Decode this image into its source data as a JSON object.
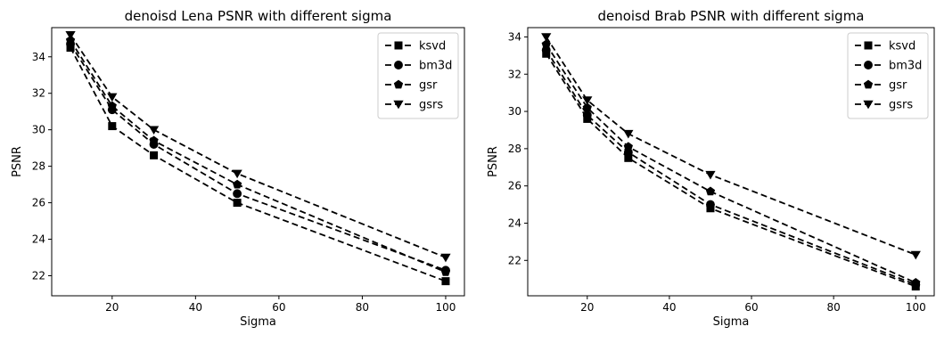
{
  "chart_data": [
    {
      "type": "line",
      "title": "denoisd Lena PSNR with different sigma",
      "xlabel": "Sigma",
      "ylabel": "PSNR",
      "x": [
        10,
        20,
        30,
        50,
        100
      ],
      "xlim": [
        5.5,
        104.5
      ],
      "ylim": [
        20.9,
        35.6
      ],
      "xticks": [
        20,
        40,
        60,
        80,
        100
      ],
      "yticks": [
        22,
        24,
        26,
        28,
        30,
        32,
        34
      ],
      "legend_position": "top-right",
      "line_style": "dashed",
      "color": "#000000",
      "series": [
        {
          "name": "ksvd",
          "marker": "square",
          "values": [
            34.5,
            30.2,
            28.6,
            26.0,
            21.7
          ]
        },
        {
          "name": "bm3d",
          "marker": "circle",
          "values": [
            34.7,
            31.1,
            29.2,
            26.5,
            22.3
          ]
        },
        {
          "name": "gsr",
          "marker": "pentagon",
          "values": [
            34.9,
            31.3,
            29.4,
            27.0,
            22.2
          ]
        },
        {
          "name": "gsrs",
          "marker": "triangle-down",
          "values": [
            35.2,
            31.8,
            30.0,
            27.6,
            23.0
          ]
        }
      ]
    },
    {
      "type": "line",
      "title": "denoisd Brab PSNR with different sigma",
      "xlabel": "Sigma",
      "ylabel": "PSNR",
      "x": [
        10,
        20,
        30,
        50,
        100
      ],
      "xlim": [
        5.5,
        104.5
      ],
      "ylim": [
        20.1,
        34.5
      ],
      "xticks": [
        20,
        40,
        60,
        80,
        100
      ],
      "yticks": [
        22,
        24,
        26,
        28,
        30,
        32,
        34
      ],
      "legend_position": "top-right",
      "line_style": "dashed",
      "color": "#000000",
      "series": [
        {
          "name": "ksvd",
          "marker": "square",
          "values": [
            33.1,
            29.6,
            27.5,
            24.8,
            20.6
          ]
        },
        {
          "name": "bm3d",
          "marker": "circle",
          "values": [
            33.3,
            29.8,
            27.8,
            25.0,
            20.7
          ]
        },
        {
          "name": "gsr",
          "marker": "pentagon",
          "values": [
            33.6,
            30.2,
            28.1,
            25.7,
            20.8
          ]
        },
        {
          "name": "gsrs",
          "marker": "triangle-down",
          "values": [
            34.0,
            30.6,
            28.8,
            26.6,
            22.3
          ]
        }
      ]
    }
  ]
}
